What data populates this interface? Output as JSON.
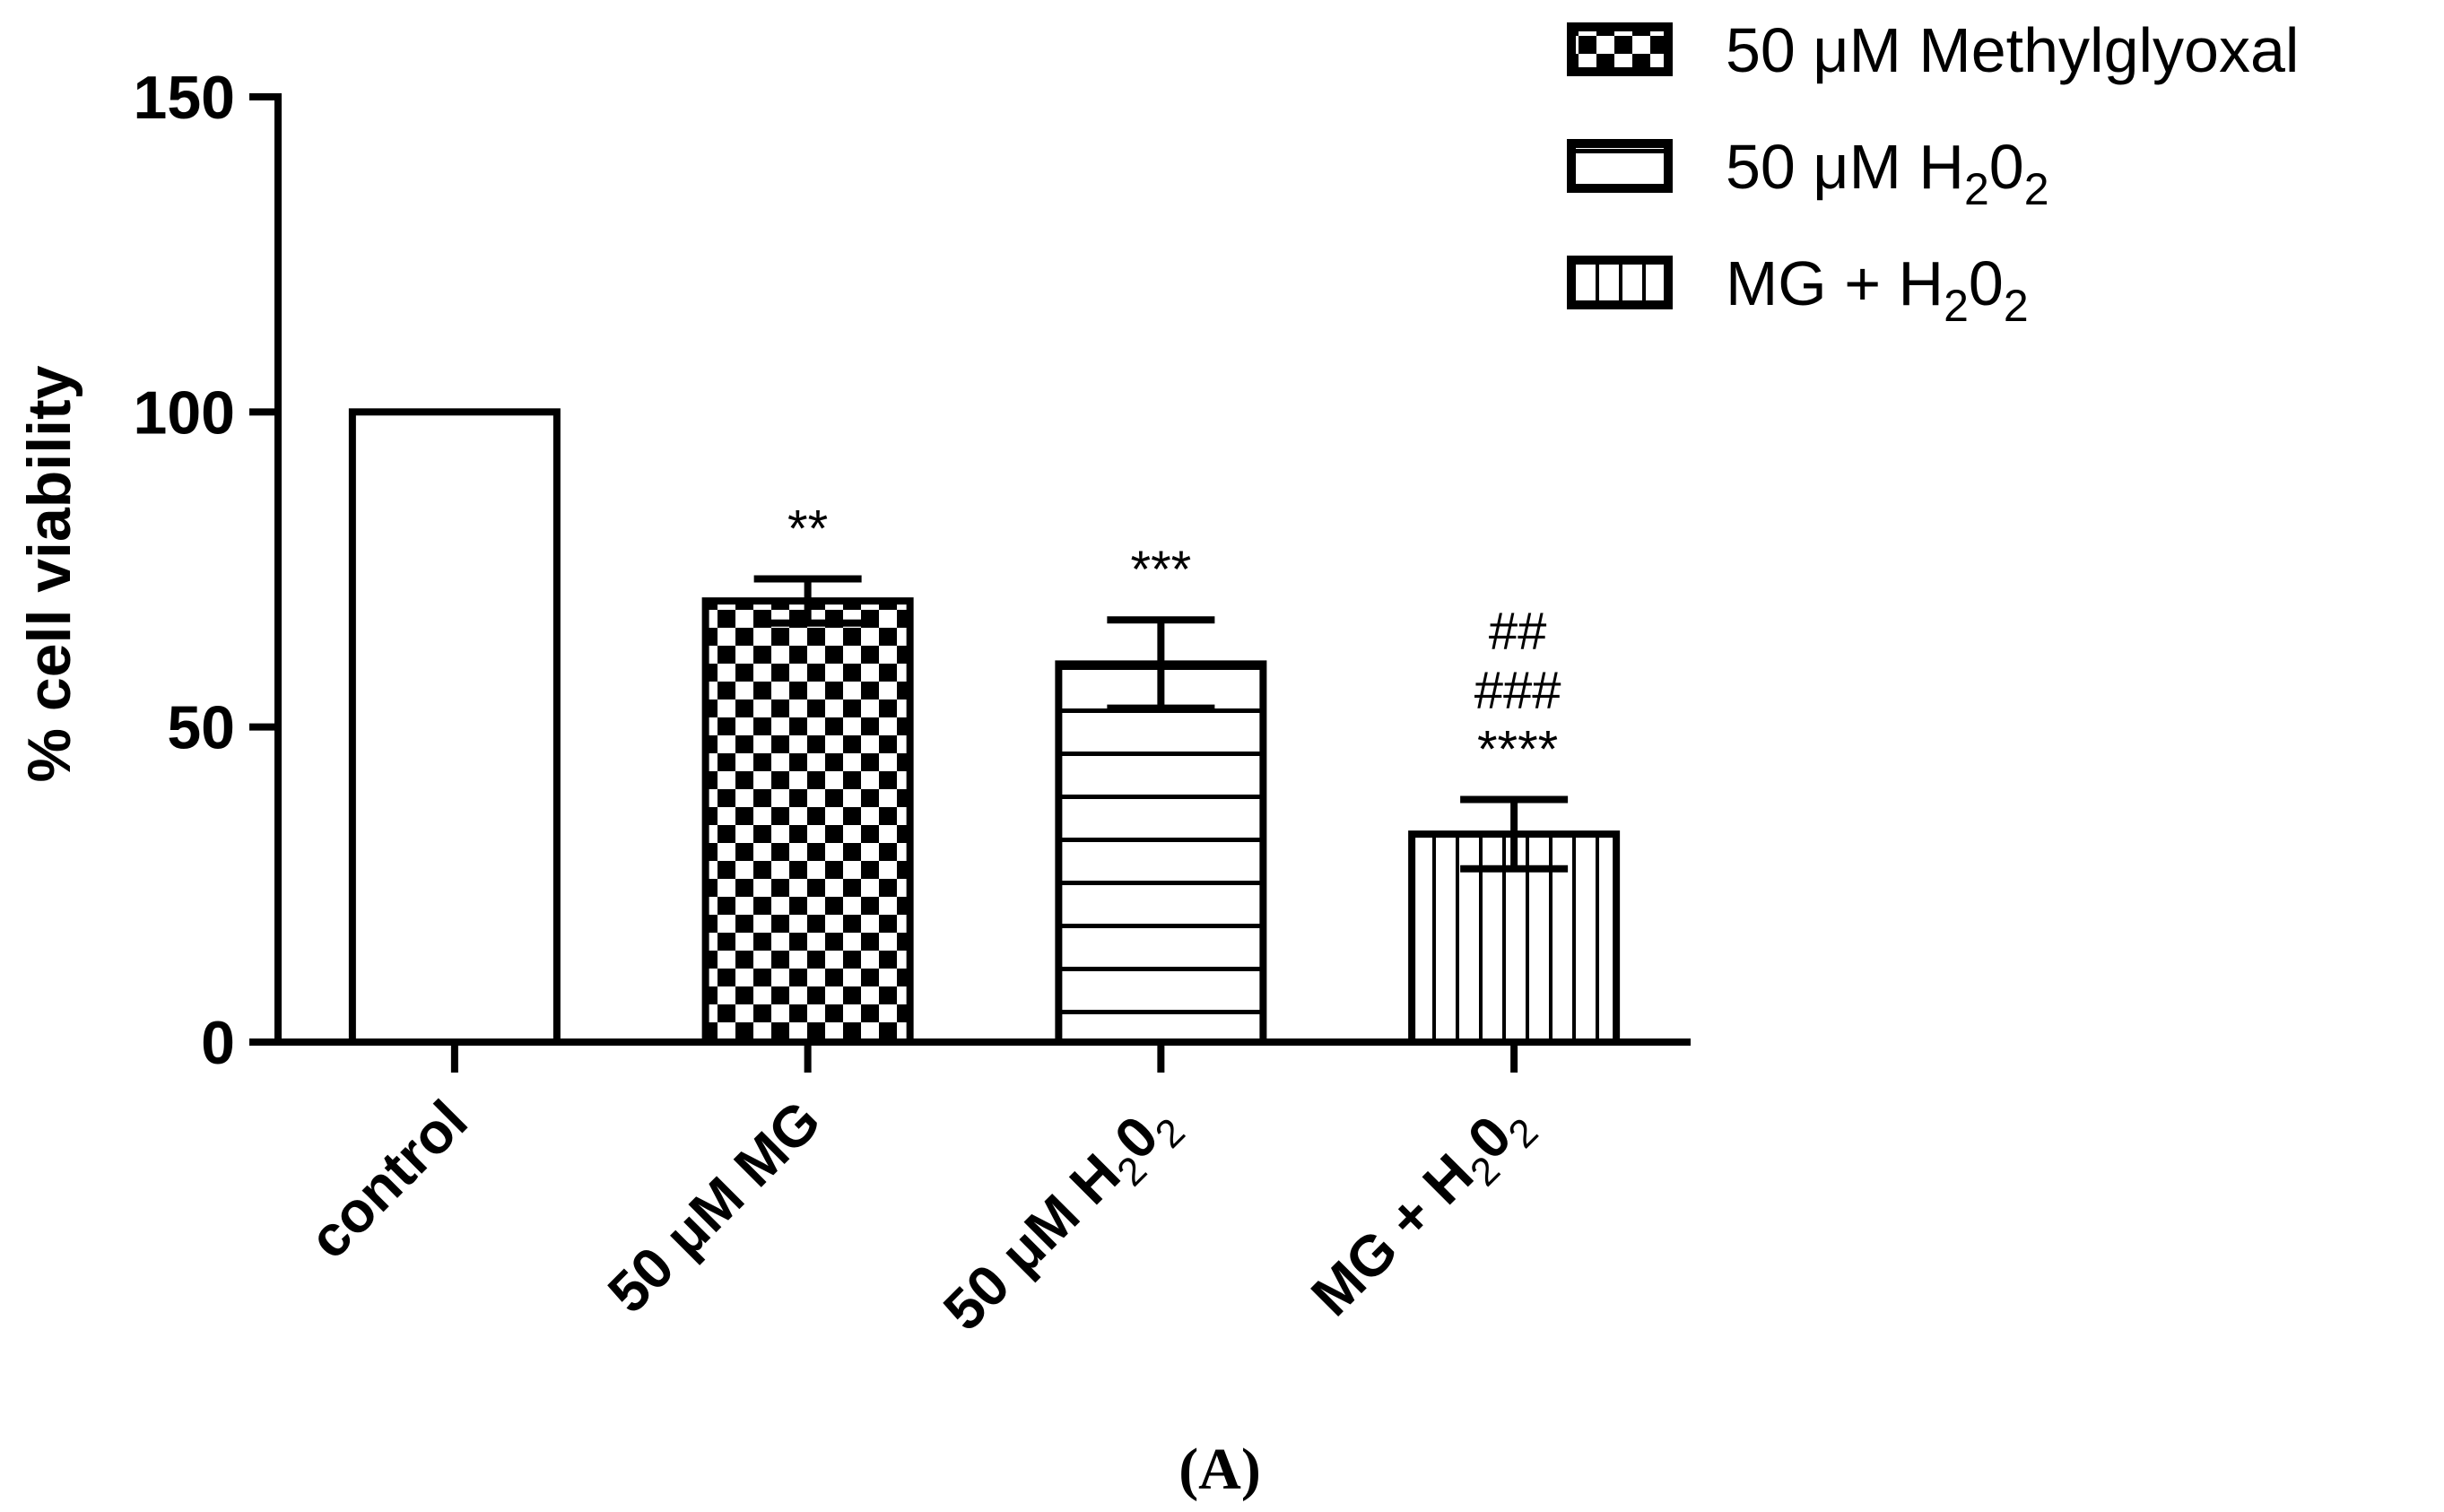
{
  "panel_label": "(A)",
  "chart_data": {
    "type": "bar",
    "title": "",
    "xlabel": "",
    "ylabel": "% cell viability",
    "ylim": [
      0,
      150
    ],
    "yticks": [
      0,
      50,
      100,
      150
    ],
    "ytick_labels": [
      "0",
      "50",
      "100",
      "150"
    ],
    "grid": false,
    "legend_position": "top-right",
    "categories": [
      {
        "name": "control",
        "label": "control",
        "sub": "",
        "tail": ""
      },
      {
        "name": "mg",
        "label": "50 μM MG",
        "sub": "",
        "tail": ""
      },
      {
        "name": "h2o2",
        "label": "50 μM H",
        "sub": "2",
        "tail": "0",
        "sub2": "2"
      },
      {
        "name": "mg-h2o2",
        "label": "MG + H",
        "sub": "2",
        "tail": "0",
        "sub2": "2"
      }
    ],
    "values": [
      100,
      70,
      60,
      33
    ],
    "errors": [
      0,
      3.5,
      7,
      5.5
    ],
    "patterns": [
      "none",
      "checker",
      "hlines",
      "vlines"
    ],
    "significance": [
      [],
      [
        "**"
      ],
      [
        "***"
      ],
      [
        "##",
        "###",
        "****"
      ]
    ],
    "legend": [
      {
        "name": "methylglyoxal",
        "text": "50 μM Methylglyoxal",
        "sub": "",
        "tail": "",
        "pattern": "checker"
      },
      {
        "name": "h2o2",
        "text": "50 μM H",
        "sub": "2",
        "tail": "0",
        "sub2": "2",
        "pattern": "hlines"
      },
      {
        "name": "mg-h2o2",
        "text": "MG + H",
        "sub": "2",
        "tail": "0",
        "sub2": "2",
        "pattern": "vlines"
      }
    ]
  }
}
